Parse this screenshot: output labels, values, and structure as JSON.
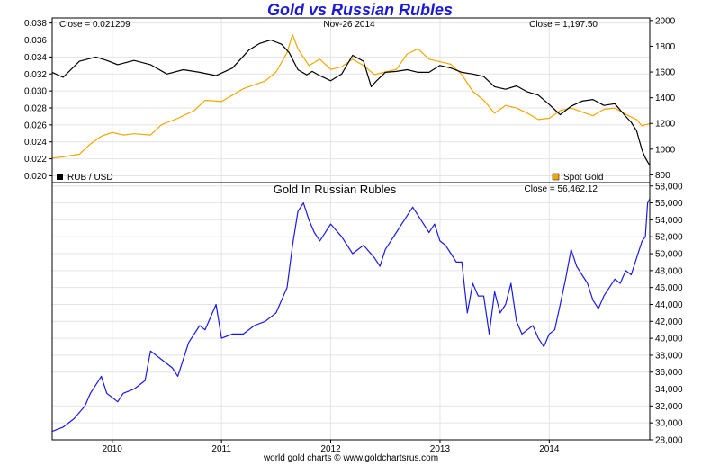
{
  "colors": {
    "title": "#1a1ad6",
    "rub": "#000000",
    "gold": "#f0a800",
    "rubles": "#1a1ae6",
    "grid": "#e4e4e4",
    "frame": "#000000"
  },
  "header": {
    "title": "Gold vs Russian Rubles",
    "rub_close": "Close = 0.021209",
    "date": "Nov-26  2014",
    "gold_close": "Close = 1,197.50",
    "legend_rub": "RUB / USD",
    "legend_gold": "Spot Gold"
  },
  "lower": {
    "title": "Gold In Russian Rubles",
    "close": "Close = 56,462.12"
  },
  "footer": {
    "credit": "world gold charts © www.goldchartsrus.com"
  },
  "chart_data": [
    {
      "type": "line",
      "x_ticks": [
        "2010",
        "2011",
        "2012",
        "2013",
        "2014"
      ],
      "x_tick_values": [
        2010.0,
        2011.0,
        2012.0,
        2013.0,
        2014.0
      ],
      "xlim": [
        2009.45,
        2014.92
      ],
      "y_left_ticks": [
        "0.020",
        "0.022",
        "0.024",
        "0.026",
        "0.028",
        "0.030",
        "0.032",
        "0.034",
        "0.036",
        "0.038"
      ],
      "y_left_lim": [
        0.0192,
        0.0386
      ],
      "y_right_ticks": [
        "800",
        "1000",
        "1200",
        "1400",
        "1600",
        "1800",
        "2000"
      ],
      "y_right_lim": [
        740,
        2020
      ],
      "grid": true,
      "legend": "bottom",
      "series": [
        {
          "name": "RUB / USD",
          "axis": "left",
          "x": [
            2009.45,
            2009.55,
            2009.7,
            2009.85,
            2009.95,
            2010.05,
            2010.2,
            2010.35,
            2010.5,
            2010.65,
            2010.8,
            2010.95,
            2011.1,
            2011.25,
            2011.35,
            2011.45,
            2011.55,
            2011.62,
            2011.7,
            2011.78,
            2011.83,
            2011.9,
            2012.0,
            2012.1,
            2012.2,
            2012.3,
            2012.37,
            2012.42,
            2012.5,
            2012.6,
            2012.7,
            2012.8,
            2012.9,
            2013.0,
            2013.1,
            2013.2,
            2013.3,
            2013.4,
            2013.5,
            2013.6,
            2013.7,
            2013.8,
            2013.9,
            2014.0,
            2014.1,
            2014.2,
            2014.3,
            2014.4,
            2014.5,
            2014.6,
            2014.7,
            2014.75,
            2014.8,
            2014.85,
            2014.88,
            2014.92
          ],
          "values": [
            0.0322,
            0.0316,
            0.0335,
            0.034,
            0.0336,
            0.0331,
            0.0336,
            0.0331,
            0.032,
            0.0325,
            0.0322,
            0.0318,
            0.0327,
            0.0348,
            0.0356,
            0.036,
            0.0355,
            0.0345,
            0.0325,
            0.0319,
            0.0323,
            0.0318,
            0.0312,
            0.032,
            0.0342,
            0.0335,
            0.0305,
            0.0312,
            0.0322,
            0.0323,
            0.0325,
            0.0322,
            0.0322,
            0.033,
            0.0327,
            0.0322,
            0.032,
            0.0317,
            0.0305,
            0.0302,
            0.0306,
            0.0299,
            0.0295,
            0.0284,
            0.0272,
            0.0282,
            0.0288,
            0.029,
            0.0283,
            0.0285,
            0.027,
            0.0263,
            0.0253,
            0.023,
            0.0221,
            0.0212
          ]
        },
        {
          "name": "Spot Gold",
          "axis": "right",
          "x": [
            2009.45,
            2009.55,
            2009.7,
            2009.8,
            2009.9,
            2010.0,
            2010.1,
            2010.2,
            2010.35,
            2010.45,
            2010.6,
            2010.75,
            2010.85,
            2011.0,
            2011.1,
            2011.2,
            2011.3,
            2011.4,
            2011.5,
            2011.6,
            2011.65,
            2011.7,
            2011.8,
            2011.9,
            2012.0,
            2012.1,
            2012.2,
            2012.3,
            2012.4,
            2012.5,
            2012.6,
            2012.7,
            2012.8,
            2012.9,
            2013.0,
            2013.1,
            2013.2,
            2013.3,
            2013.4,
            2013.5,
            2013.6,
            2013.7,
            2013.8,
            2013.9,
            2014.0,
            2014.1,
            2014.2,
            2014.3,
            2014.4,
            2014.5,
            2014.6,
            2014.7,
            2014.8,
            2014.85,
            2014.88,
            2014.92
          ],
          "values": [
            930,
            940,
            960,
            1040,
            1100,
            1130,
            1110,
            1120,
            1110,
            1190,
            1240,
            1300,
            1380,
            1370,
            1420,
            1470,
            1500,
            1530,
            1600,
            1750,
            1890,
            1780,
            1650,
            1700,
            1620,
            1640,
            1700,
            1650,
            1580,
            1600,
            1620,
            1740,
            1780,
            1700,
            1680,
            1660,
            1580,
            1450,
            1380,
            1280,
            1340,
            1320,
            1280,
            1230,
            1240,
            1300,
            1320,
            1290,
            1260,
            1310,
            1320,
            1270,
            1230,
            1180,
            1190,
            1197.5
          ]
        }
      ]
    },
    {
      "type": "line",
      "title": "Gold In Russian Rubles",
      "x_ticks": [
        "2010",
        "2011",
        "2012",
        "2013",
        "2014"
      ],
      "x_tick_values": [
        2010.0,
        2011.0,
        2012.0,
        2013.0,
        2014.0
      ],
      "xlim": [
        2009.45,
        2014.92
      ],
      "y_ticks": [
        "28,000",
        "30,000",
        "32,000",
        "34,000",
        "36,000",
        "38,000",
        "40,000",
        "42,000",
        "44,000",
        "46,000",
        "48,000",
        "50,000",
        "52,000",
        "54,000",
        "56,000",
        "58,000"
      ],
      "ylim": [
        28000,
        58400
      ],
      "grid": true,
      "series": [
        {
          "name": "Gold In Russian Rubles",
          "x": [
            2009.45,
            2009.55,
            2009.65,
            2009.75,
            2009.8,
            2009.85,
            2009.9,
            2009.95,
            2010.0,
            2010.05,
            2010.1,
            2010.2,
            2010.3,
            2010.35,
            2010.45,
            2010.55,
            2010.6,
            2010.7,
            2010.8,
            2010.85,
            2010.95,
            2011.0,
            2011.1,
            2011.2,
            2011.3,
            2011.4,
            2011.5,
            2011.55,
            2011.6,
            2011.65,
            2011.7,
            2011.75,
            2011.8,
            2011.85,
            2011.9,
            2012.0,
            2012.1,
            2012.2,
            2012.3,
            2012.4,
            2012.45,
            2012.5,
            2012.55,
            2012.6,
            2012.65,
            2012.7,
            2012.75,
            2012.8,
            2012.85,
            2012.9,
            2012.95,
            2013.0,
            2013.05,
            2013.1,
            2013.15,
            2013.2,
            2013.25,
            2013.3,
            2013.35,
            2013.4,
            2013.45,
            2013.5,
            2013.55,
            2013.6,
            2013.65,
            2013.7,
            2013.75,
            2013.8,
            2013.85,
            2013.9,
            2013.95,
            2014.0,
            2014.05,
            2014.1,
            2014.15,
            2014.2,
            2014.25,
            2014.3,
            2014.35,
            2014.4,
            2014.45,
            2014.5,
            2014.55,
            2014.6,
            2014.65,
            2014.7,
            2014.75,
            2014.8,
            2014.85,
            2014.88,
            2014.9,
            2014.92
          ],
          "values": [
            29000,
            29500,
            30500,
            32000,
            33500,
            34500,
            35500,
            33500,
            33000,
            32500,
            33500,
            34000,
            35000,
            38500,
            37500,
            36500,
            35500,
            39500,
            41500,
            41000,
            44000,
            40000,
            40500,
            40500,
            41500,
            42000,
            43000,
            44500,
            46000,
            51000,
            55000,
            56000,
            54000,
            52500,
            51500,
            53500,
            52000,
            50000,
            51000,
            49500,
            48500,
            50500,
            51500,
            52500,
            53500,
            54500,
            55500,
            54500,
            53500,
            52500,
            53500,
            51500,
            51000,
            50000,
            49000,
            49000,
            43000,
            46500,
            45000,
            45000,
            40500,
            45500,
            43000,
            44000,
            46500,
            42000,
            40500,
            41000,
            41500,
            40000,
            39000,
            40500,
            41000,
            44000,
            47000,
            50500,
            48500,
            47500,
            46500,
            44500,
            43500,
            45000,
            46000,
            47000,
            46500,
            48000,
            47500,
            49500,
            51500,
            52000,
            56000,
            56462
          ]
        }
      ]
    }
  ]
}
